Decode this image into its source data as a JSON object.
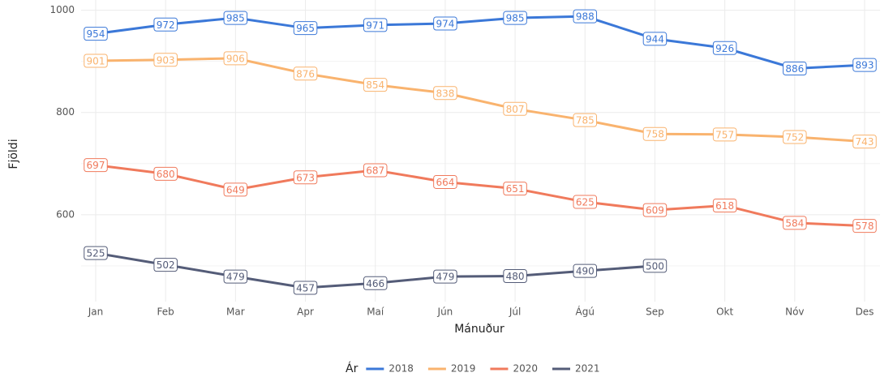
{
  "chart_data": {
    "type": "line",
    "x_label": "Mánuður",
    "y_label": "Fjöldi",
    "legend_title": "Ár",
    "legend_position": "bottom",
    "grid": true,
    "categories": [
      "Jan",
      "Feb",
      "Mar",
      "Apr",
      "Maí",
      "Jún",
      "Júl",
      "Ágú",
      "Sep",
      "Okt",
      "Nóv",
      "Des"
    ],
    "ylim": [
      430,
      1020
    ],
    "yticks": [
      600,
      800,
      1000
    ],
    "series": [
      {
        "name": "2018",
        "color": "#3b78d8",
        "values": [
          954,
          972,
          985,
          965,
          971,
          974,
          985,
          988,
          944,
          926,
          886,
          893
        ]
      },
      {
        "name": "2019",
        "color": "#f9b36e",
        "values": [
          901,
          903,
          906,
          876,
          854,
          838,
          807,
          785,
          758,
          757,
          752,
          743
        ]
      },
      {
        "name": "2020",
        "color": "#f07a5c",
        "values": [
          697,
          680,
          649,
          673,
          687,
          664,
          651,
          625,
          609,
          618,
          584,
          578
        ]
      },
      {
        "name": "2021",
        "color": "#545c78",
        "values": [
          525,
          502,
          479,
          457,
          466,
          479,
          480,
          490,
          500,
          null,
          null,
          null
        ]
      }
    ]
  }
}
